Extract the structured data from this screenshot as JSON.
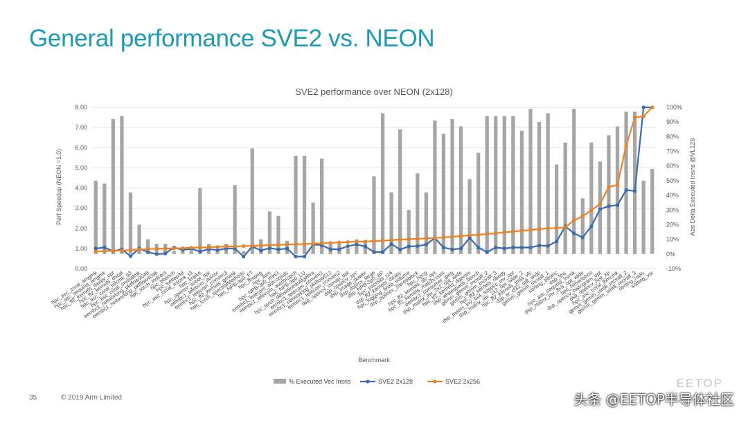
{
  "slide": {
    "title": "General performance SVE2 vs. NEON",
    "page_number": "35",
    "copyright": "© 2019 Arm Limited",
    "watermark": "头条 @EETOP半导体社区",
    "watermark_ghost": "EETOP"
  },
  "chart_data": {
    "type": "bar+line",
    "title": "SVE2 performance over NEON (2x128)",
    "xlabel": "Benchmark",
    "ylabel": "Perf Speedup (NEON =1.0)",
    "y2label": "Abs Delta Executed Insns @VL128",
    "ylim": [
      0,
      8
    ],
    "yticks": [
      "0.00",
      "1.00",
      "2.00",
      "3.00",
      "4.00",
      "5.00",
      "6.00",
      "7.00",
      "8.00"
    ],
    "y2lim": [
      -10,
      100
    ],
    "y2ticks": [
      "-10%",
      "0%",
      "10%",
      "20%",
      "30%",
      "40%",
      "50%",
      "60%",
      "70%",
      "80%",
      "90%",
      "100%"
    ],
    "grid": true,
    "legend_position": "bottom",
    "categories": [
      "hpc_asc_coral_amgmk",
      "hpc_asc_sequoia_amgmk",
      "hpc_ff2_kernels_daxpy_opt",
      "hpc_ff2_kernels_dscal",
      "hpc_asc_coral_mlcmk_g3",
      "hpc_asc_coral_crystalmk",
      "eembc1_networking_pktflow2048",
      "eembc1_networking_pktflow4096",
      "hpc_torch_indirect",
      "hpc_bbench",
      "hpc_sweep3d",
      "hpc_asc_coral_mlcmk_t3",
      "hpc_kripke",
      "hpc_opencv_sobel_opt",
      "eembc1_telecom_autcor",
      "eembc1_telecom_conven3",
      "hpc_ff2_kernels_gmask",
      "hpc_torch_spectralMethods",
      "hpc_NPB-3p0_FT",
      "hpc_ffmpeg",
      "hpc_llvm",
      "hpc_NPB-3p0_mini1",
      "eembc1_telecom_autcorpuls",
      "eembc1_telecom_autcorspch",
      "hpc_NPB-3p0_LU",
      "hpc_torch_denselinearAlgebra",
      "eembc1_telecom_conven1",
      "eembc1_networking_pktflow512",
      "eembc1_telecom_conven2",
      "dsp_opencv_remap_opt",
      "dsp_opencv_spc",
      "dsp_image_power",
      "dsp_dsprcv_large",
      "dsp_NPB-3p0_SP",
      "hpc_pacnsbl_t16",
      "dsp_ff2_kernels_daxpy",
      "hpc_logging_finite_volume",
      "dsp_opencv_stereoblock",
      "hpc_hpcg",
      "hpc_ff2_kernels_dlc_opt",
      "hpc_ff2_kernels_matchcount",
      "eembc1_consumer_jpeg",
      "dsp_matrix_inv_2x2_opt_wide",
      "hpc_ff2_kernels_dgemm",
      "dsp_whitespace_bench",
      "gemm_gemm_mcvall_2",
      "gemm_gemm_mcvall_3",
      "hpc_ff2_kernels_nbody",
      "dsp_matrix_inv_4x4_sdspec_inv_opt",
      "dsp_matrix_inv_2x2_opt_wide_2",
      "hpc_ff2_kernels_fmla_vls",
      "dsp_iir_cf32_opt_wide",
      "gemm_gemm_mcvall_1",
      "sorting_bitonic",
      "dsp_lms",
      "hpc_asc_sequoia_irsmk",
      "dsp_matrix_inv_8x8_opt_wide",
      "hpc_himenobmt",
      "dsp_opencv_histogram_opt",
      "dsp_opencv_hist_xp",
      "hpc_asc_coral_lbmcmk",
      "gemm_gemm_uint8_mcvall_2",
      "gemm_gemm_uint8_mcvall_3",
      "sorting_radix",
      "sorting_vsr"
    ],
    "series": [
      {
        "name": "% Executed Vec Insns",
        "kind": "bar",
        "axis": "right",
        "values": [
          50,
          48,
          92,
          94,
          42,
          20,
          10,
          7,
          7,
          2,
          2,
          2,
          45,
          7,
          2,
          7,
          47,
          2,
          72,
          10,
          29,
          26,
          9,
          67,
          67,
          35,
          65,
          7,
          7,
          4,
          10,
          9,
          53,
          96,
          42,
          85,
          30,
          55,
          42,
          91,
          82,
          92,
          87,
          51,
          69,
          94,
          94,
          94,
          94,
          84,
          99,
          90,
          96,
          61,
          76,
          99,
          38,
          76,
          63,
          81,
          87,
          97,
          97,
          50,
          58
        ]
      },
      {
        "name": "SVE2 2x128",
        "kind": "line",
        "axis": "left",
        "color": "#3a6ab0",
        "values": [
          1.0,
          1.05,
          0.86,
          0.96,
          0.62,
          1.0,
          0.82,
          0.72,
          0.75,
          1.05,
          0.93,
          0.98,
          0.85,
          0.97,
          0.92,
          1.0,
          1.0,
          0.6,
          1.1,
          0.9,
          1.02,
          0.95,
          1.0,
          0.6,
          0.6,
          1.2,
          1.16,
          0.96,
          0.96,
          1.12,
          1.2,
          1.1,
          0.82,
          0.82,
          1.22,
          0.95,
          1.1,
          1.12,
          1.2,
          1.52,
          1.05,
          0.95,
          1.0,
          1.52,
          1.05,
          0.82,
          1.05,
          1.0,
          1.05,
          1.05,
          1.05,
          1.15,
          1.13,
          1.35,
          2.1,
          1.75,
          1.55,
          2.1,
          2.95,
          3.1,
          3.15,
          3.9,
          3.85,
          8.0,
          8.0
        ]
      },
      {
        "name": "SVE2 2x256",
        "kind": "line",
        "axis": "left",
        "color": "#e8832a",
        "values": [
          0.85,
          0.88,
          0.88,
          0.9,
          0.92,
          0.95,
          0.97,
          0.98,
          1.0,
          1.0,
          1.02,
          1.04,
          1.05,
          1.06,
          1.08,
          1.1,
          1.1,
          1.12,
          1.13,
          1.15,
          1.17,
          1.18,
          1.2,
          1.21,
          1.22,
          1.24,
          1.26,
          1.28,
          1.3,
          1.32,
          1.34,
          1.35,
          1.37,
          1.38,
          1.42,
          1.44,
          1.46,
          1.48,
          1.5,
          1.52,
          1.55,
          1.58,
          1.62,
          1.65,
          1.68,
          1.72,
          1.76,
          1.8,
          1.84,
          1.88,
          1.92,
          1.96,
          2.0,
          2.02,
          2.05,
          2.4,
          2.6,
          2.9,
          3.2,
          4.05,
          4.15,
          6.1,
          7.5,
          7.55,
          8.0
        ]
      }
    ]
  }
}
